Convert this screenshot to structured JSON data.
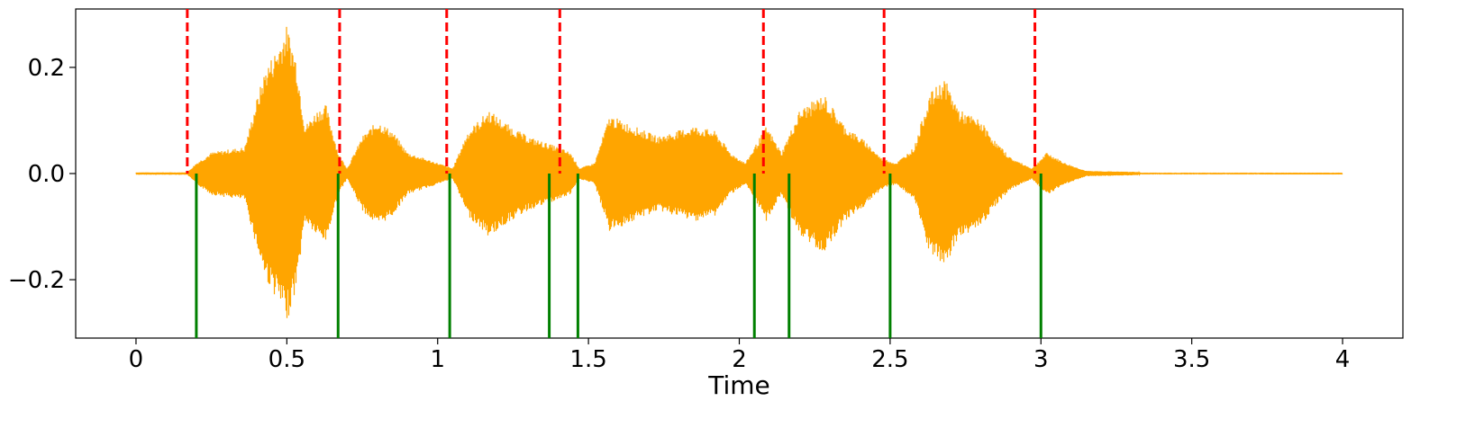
{
  "chart_data": {
    "type": "line",
    "title": "",
    "xlabel": "Time",
    "ylabel": "",
    "xlim": [
      -0.2,
      4.2
    ],
    "ylim": [
      -0.31,
      0.31
    ],
    "x_ticks": [
      0,
      0.5,
      1,
      1.5,
      2,
      2.5,
      3,
      3.5,
      4
    ],
    "x_tick_labels": [
      "0",
      "0.5",
      "1",
      "1.5",
      "2",
      "2.5",
      "3",
      "3.5",
      "4"
    ],
    "y_ticks": [
      -0.2,
      0.0,
      0.2
    ],
    "y_tick_labels": [
      "−0.2",
      "0.0",
      "0.2"
    ],
    "grid": false,
    "legend": "none",
    "colors": {
      "waveform": "#FFA500",
      "onset_markers_dashed": "#FF0000",
      "onset_markers_solid": "#008000"
    },
    "waveform": {
      "start": 0.0,
      "signal_end": 3.32,
      "end": 4.0,
      "envelope": [
        [
          0.0,
          0.002
        ],
        [
          0.17,
          0.002
        ],
        [
          0.2,
          0.02
        ],
        [
          0.25,
          0.04
        ],
        [
          0.3,
          0.045
        ],
        [
          0.36,
          0.05
        ],
        [
          0.4,
          0.14
        ],
        [
          0.43,
          0.2
        ],
        [
          0.47,
          0.24
        ],
        [
          0.5,
          0.28
        ],
        [
          0.53,
          0.22
        ],
        [
          0.56,
          0.09
        ],
        [
          0.6,
          0.12
        ],
        [
          0.63,
          0.13
        ],
        [
          0.67,
          0.04
        ],
        [
          0.7,
          0.01
        ],
        [
          0.75,
          0.07
        ],
        [
          0.8,
          0.1
        ],
        [
          0.85,
          0.08
        ],
        [
          0.9,
          0.04
        ],
        [
          0.95,
          0.03
        ],
        [
          1.0,
          0.02
        ],
        [
          1.05,
          0.01
        ],
        [
          1.1,
          0.08
        ],
        [
          1.17,
          0.12
        ],
        [
          1.24,
          0.09
        ],
        [
          1.3,
          0.07
        ],
        [
          1.35,
          0.06
        ],
        [
          1.4,
          0.05
        ],
        [
          1.44,
          0.04
        ],
        [
          1.47,
          0.01
        ],
        [
          1.52,
          0.02
        ],
        [
          1.57,
          0.11
        ],
        [
          1.65,
          0.09
        ],
        [
          1.73,
          0.07
        ],
        [
          1.85,
          0.09
        ],
        [
          1.92,
          0.08
        ],
        [
          1.97,
          0.04
        ],
        [
          2.02,
          0.02
        ],
        [
          2.05,
          0.05
        ],
        [
          2.09,
          0.09
        ],
        [
          2.14,
          0.04
        ],
        [
          2.2,
          0.12
        ],
        [
          2.28,
          0.15
        ],
        [
          2.35,
          0.09
        ],
        [
          2.42,
          0.06
        ],
        [
          2.47,
          0.03
        ],
        [
          2.52,
          0.02
        ],
        [
          2.58,
          0.05
        ],
        [
          2.63,
          0.15
        ],
        [
          2.68,
          0.18
        ],
        [
          2.73,
          0.12
        ],
        [
          2.8,
          0.1
        ],
        [
          2.85,
          0.06
        ],
        [
          2.9,
          0.03
        ],
        [
          2.97,
          0.01
        ],
        [
          3.02,
          0.04
        ],
        [
          3.08,
          0.02
        ],
        [
          3.15,
          0.005
        ],
        [
          3.32,
          0.003
        ],
        [
          3.33,
          0.0005
        ],
        [
          4.0,
          0.0005
        ]
      ]
    },
    "vlines_dashed": {
      "color": "#FF0000",
      "y_range": [
        0.0,
        0.31
      ],
      "x": [
        0.17,
        0.675,
        1.03,
        1.405,
        2.08,
        2.48,
        2.98
      ]
    },
    "vlines_solid": {
      "color": "#008000",
      "y_range": [
        -0.31,
        0.0
      ],
      "x": [
        0.2,
        0.67,
        1.04,
        1.37,
        1.465,
        2.05,
        2.165,
        2.5,
        3.0
      ]
    }
  }
}
